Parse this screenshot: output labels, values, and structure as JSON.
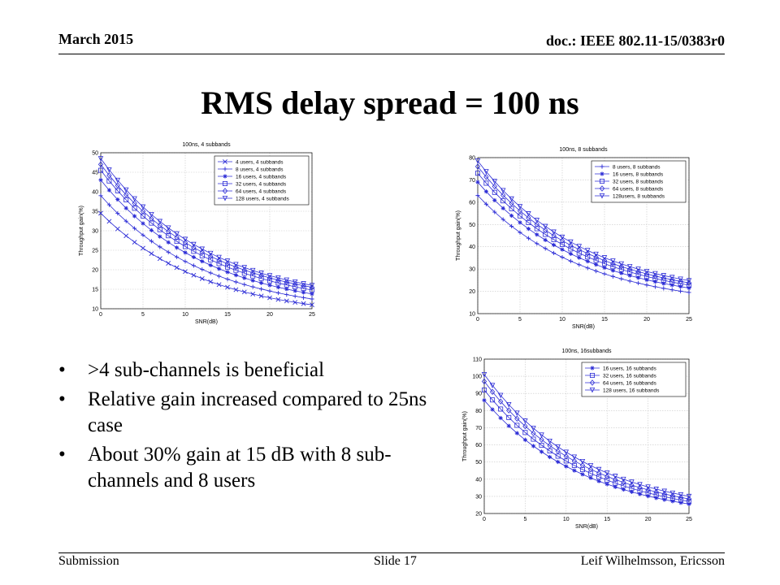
{
  "header": {
    "date": "March 2015",
    "doc": "doc.: IEEE 802.11-15/0383r0"
  },
  "slide": {
    "title": "RMS delay spread = 100 ns",
    "bullets": [
      ">4  sub-channels is beneficial",
      "Relative gain increased compared to 25ns case",
      "About 30% gain at 15 dB with 8 sub-channels and 8 users"
    ]
  },
  "footer": {
    "left": "Submission",
    "center": "Slide 17",
    "right": "Leif Wilhelmsson, Ericsson"
  },
  "colors": {
    "series": "#2b2bd6",
    "grid": "#c8c8c8",
    "axis": "#000000"
  },
  "chart_data": [
    {
      "type": "line",
      "title": "100ns, 4 subbands",
      "xlabel": "SNR(dB)",
      "ylabel": "Throughput gain(%)",
      "xlim": [
        0,
        25
      ],
      "ylim": [
        10,
        50
      ],
      "xticks": [
        0,
        5,
        10,
        15,
        20,
        25
      ],
      "yticks": [
        10,
        15,
        20,
        25,
        30,
        35,
        40,
        45,
        50
      ],
      "x": [
        0,
        25
      ],
      "grid": true,
      "legend": "top-right",
      "series": [
        {
          "name": "4 users, 4 subbands",
          "marker": "x",
          "values": [
            34.5,
            11.0
          ]
        },
        {
          "name": "8 users, 4 subbands",
          "marker": "+",
          "values": [
            39.0,
            12.5
          ]
        },
        {
          "name": "16 users, 4 subbands",
          "marker": "*",
          "values": [
            43.0,
            13.8
          ]
        },
        {
          "name": "32 users, 4 subbands",
          "marker": "s",
          "values": [
            45.5,
            14.8
          ]
        },
        {
          "name": "64 users, 4 subbands",
          "marker": "d",
          "values": [
            47.0,
            15.5
          ]
        },
        {
          "name": "128 users, 4 subbands",
          "marker": "v",
          "values": [
            48.5,
            16.0
          ]
        }
      ]
    },
    {
      "type": "line",
      "title": "100ns, 8 subbands",
      "xlabel": "SNR(dB)",
      "ylabel": "Throughput gain(%)",
      "xlim": [
        0,
        25
      ],
      "ylim": [
        10,
        80
      ],
      "xticks": [
        0,
        5,
        10,
        15,
        20,
        25
      ],
      "yticks": [
        10,
        20,
        30,
        40,
        50,
        60,
        70,
        80
      ],
      "x": [
        0,
        25
      ],
      "grid": true,
      "legend": "top-right",
      "series": [
        {
          "name": "8 users, 8 subbands",
          "marker": "+",
          "values": [
            63.0,
            19.5
          ]
        },
        {
          "name": "16 users, 8 subbands",
          "marker": "*",
          "values": [
            69.0,
            21.5
          ]
        },
        {
          "name": "32 users, 8 subbands",
          "marker": "s",
          "values": [
            73.0,
            22.8
          ]
        },
        {
          "name": "64 users, 8 subbands",
          "marker": "d",
          "values": [
            76.0,
            23.8
          ]
        },
        {
          "name": "128users, 8 subbands",
          "marker": "v",
          "values": [
            78.5,
            24.8
          ]
        }
      ]
    },
    {
      "type": "line",
      "title": "100ns, 16subbands",
      "xlabel": "SNR(dB)",
      "ylabel": "Throughput gain(%)",
      "xlim": [
        0,
        25
      ],
      "ylim": [
        20,
        110
      ],
      "xticks": [
        0,
        5,
        10,
        15,
        20,
        25
      ],
      "yticks": [
        20,
        30,
        40,
        50,
        60,
        70,
        80,
        90,
        100,
        110
      ],
      "x": [
        0,
        25
      ],
      "grid": true,
      "legend": "top-right",
      "series": [
        {
          "name": "16 users, 16 subbands",
          "marker": "*",
          "values": [
            86.0,
            25.5
          ]
        },
        {
          "name": "32 users, 16 subbands",
          "marker": "s",
          "values": [
            92.0,
            27.0
          ]
        },
        {
          "name": "64 users, 16 subbands",
          "marker": "d",
          "values": [
            97.0,
            28.5
          ]
        },
        {
          "name": "128 users, 16 subbands",
          "marker": "v",
          "values": [
            101.0,
            30.0
          ]
        }
      ]
    }
  ]
}
